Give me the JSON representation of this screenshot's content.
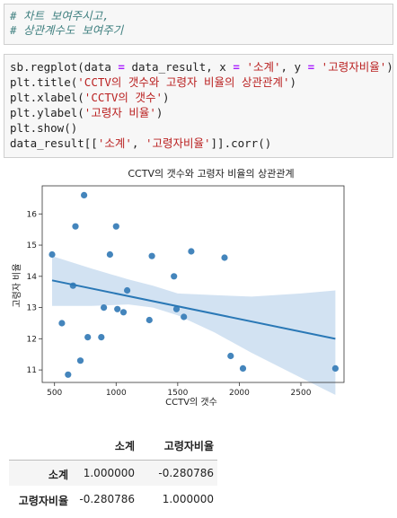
{
  "comment_cell": {
    "lines": [
      "# 차트 보여주시고,",
      "# 상관계수도 보여주기"
    ]
  },
  "code_cell": {
    "line1": {
      "a": "sb.regplot(data ",
      "op1": "=",
      "b": " data_result, x ",
      "op2": "=",
      "c": " ",
      "s1": "'소계'",
      "d": ", y ",
      "op3": "=",
      "e": " ",
      "s2": "'고령자비율'",
      "f": ")"
    },
    "line2": {
      "a": "plt.title(",
      "s": "'CCTV의 갯수와 고령자 비율의 상관관계'",
      "b": ")"
    },
    "line3": {
      "a": "plt.xlabel(",
      "s": "'CCTV의 갯수'",
      "b": ")"
    },
    "line4": {
      "a": "plt.ylabel(",
      "s": "'고령자 비율'",
      "b": ")"
    },
    "line5": {
      "a": "plt.show()"
    },
    "line6": {
      "a": "data_result[[",
      "s1": "'소계'",
      "b": ", ",
      "s2": "'고령자비율'",
      "c": "]].corr()"
    }
  },
  "chart_data": {
    "type": "scatter",
    "title": "CCTV의 갯수와 고령자 비율의 상관관계",
    "xlabel": "CCTV의 갯수",
    "ylabel": "고령자 비율",
    "xlim": [
      400,
      2850
    ],
    "ylim": [
      10.6,
      16.9
    ],
    "xticks": [
      500,
      1000,
      1500,
      2000,
      2500
    ],
    "yticks": [
      11,
      12,
      13,
      14,
      15,
      16
    ],
    "points": [
      [
        480,
        14.7
      ],
      [
        560,
        12.5
      ],
      [
        610,
        10.85
      ],
      [
        650,
        13.7
      ],
      [
        670,
        15.6
      ],
      [
        710,
        11.3
      ],
      [
        740,
        16.6
      ],
      [
        770,
        12.05
      ],
      [
        880,
        12.05
      ],
      [
        900,
        13.0
      ],
      [
        950,
        14.7
      ],
      [
        1000,
        15.6
      ],
      [
        1010,
        12.95
      ],
      [
        1060,
        12.85
      ],
      [
        1090,
        13.55
      ],
      [
        1270,
        12.6
      ],
      [
        1290,
        14.65
      ],
      [
        1470,
        14.0
      ],
      [
        1490,
        12.95
      ],
      [
        1550,
        12.7
      ],
      [
        1610,
        14.8
      ],
      [
        1880,
        14.6
      ],
      [
        1930,
        11.45
      ],
      [
        2030,
        11.05
      ],
      [
        2780,
        11.05
      ]
    ],
    "regression": {
      "x0": 480,
      "y0": 13.87,
      "x1": 2780,
      "y1": 12.0
    },
    "ci_band": [
      [
        480,
        14.65,
        13.05
      ],
      [
        800,
        14.25,
        13.05
      ],
      [
        1100,
        13.9,
        13.1
      ],
      [
        1300,
        13.7,
        13.0
      ],
      [
        1500,
        13.45,
        12.75
      ],
      [
        1800,
        13.4,
        12.2
      ],
      [
        2100,
        13.35,
        11.55
      ],
      [
        2500,
        13.45,
        10.75
      ],
      [
        2780,
        13.55,
        10.2
      ]
    ],
    "grid": false,
    "colors": {
      "point": "#3a7eb8",
      "line": "#2a78b6",
      "band": "#c3d8ee"
    }
  },
  "corr_table": {
    "columns": [
      "소계",
      "고령자비율"
    ],
    "rows": [
      {
        "label": "소계",
        "values": [
          "1.000000",
          "-0.280786"
        ]
      },
      {
        "label": "고령자비율",
        "values": [
          "-0.280786",
          "1.000000"
        ]
      }
    ]
  }
}
